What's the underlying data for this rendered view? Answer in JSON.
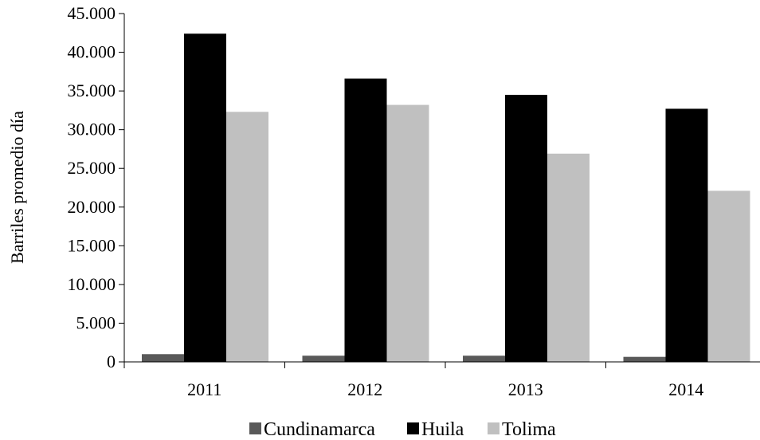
{
  "chart_data": {
    "type": "bar",
    "categories": [
      "2011",
      "2012",
      "2013",
      "2014"
    ],
    "series": [
      {
        "name": "Cundinamarca",
        "color": "#595959",
        "values": [
          1000,
          800,
          800,
          650
        ]
      },
      {
        "name": "Huila",
        "color": "#000000",
        "values": [
          42400,
          36600,
          34500,
          32700
        ]
      },
      {
        "name": "Tolima",
        "color": "#c0c0c0",
        "values": [
          32300,
          33200,
          26900,
          22100
        ]
      }
    ],
    "title": "",
    "xlabel": "",
    "ylabel": "Barriles  promedio  día",
    "ylim": [
      0,
      45000
    ],
    "yticks": [
      0,
      5000,
      10000,
      15000,
      20000,
      25000,
      30000,
      35000,
      40000,
      45000
    ],
    "ytick_labels": [
      "0",
      "5.000",
      "10.000",
      "15.000",
      "20.000",
      "25.000",
      "30.000",
      "35.000",
      "40.000",
      "45.000"
    ],
    "grid": false,
    "legend": "bottom"
  }
}
